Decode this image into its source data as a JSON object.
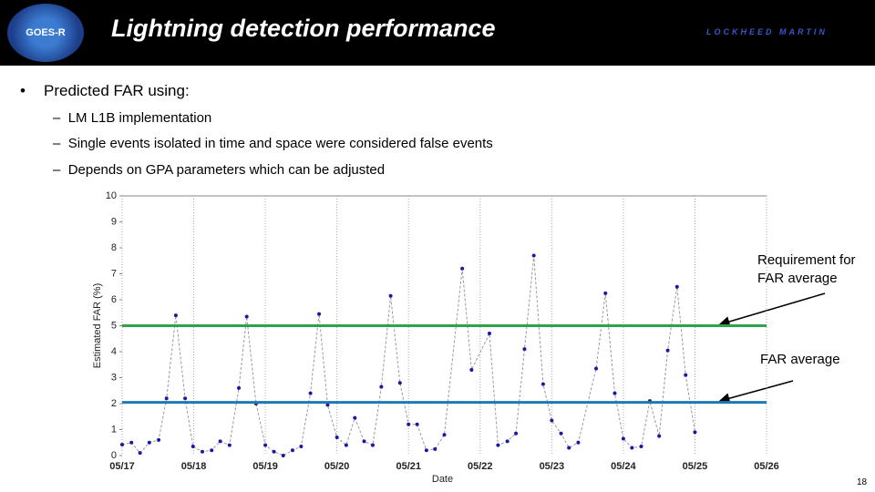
{
  "header": {
    "title": "Lightning detection performance",
    "logo_left": "GOES-R",
    "logo_right": "LOCKHEED MARTIN"
  },
  "bullet": {
    "text": "Predicted FAR using:",
    "subitems": [
      "LM L1B implementation",
      "Single events isolated in time and space were considered false events",
      "Depends on GPA parameters which can be adjusted"
    ]
  },
  "chart_data": {
    "type": "line",
    "xlabel": "Date",
    "ylabel": "Estimated FAR (%)",
    "x": [
      0,
      0.13,
      0.25,
      0.38,
      0.51,
      0.62,
      0.75,
      0.88,
      0.99,
      1.12,
      1.25,
      1.37,
      1.5,
      1.63,
      1.74,
      1.87,
      2.0,
      2.12,
      2.25,
      2.38,
      2.5,
      2.63,
      2.75,
      2.87,
      3.0,
      3.13,
      3.25,
      3.38,
      3.5,
      3.62,
      3.75,
      3.88,
      4.0,
      4.12,
      4.25,
      4.37,
      4.5,
      4.75,
      4.88,
      5.13,
      5.25,
      5.38,
      5.5,
      5.62,
      5.75,
      5.88,
      6.0,
      6.13,
      6.24,
      6.37,
      6.62,
      6.75,
      6.88,
      7.0,
      7.12,
      7.25,
      7.37,
      7.5,
      7.62,
      7.75,
      7.87,
      8.0
    ],
    "values": [
      0.42,
      0.5,
      0.1,
      0.5,
      0.6,
      2.2,
      5.4,
      2.2,
      0.35,
      0.15,
      0.2,
      0.55,
      0.4,
      2.6,
      5.35,
      2.0,
      0.4,
      0.15,
      0,
      0.2,
      0.35,
      2.4,
      5.45,
      1.95,
      0.7,
      0.4,
      1.45,
      0.55,
      0.4,
      2.65,
      6.15,
      2.8,
      1.2,
      1.2,
      0.2,
      0.25,
      0.8,
      7.2,
      3.3,
      4.7,
      0.4,
      0.55,
      0.85,
      4.1,
      7.7,
      2.75,
      1.35,
      0.85,
      0.3,
      0.5,
      3.35,
      6.25,
      2.4,
      0.65,
      0.3,
      0.35,
      2.1,
      0.75,
      4.05,
      6.5,
      3.1,
      0.9
    ],
    "line_color": "#9a9a9a",
    "marker_color": "#1a1aa0",
    "xlim": [
      0,
      9
    ],
    "ylim": [
      0,
      10
    ],
    "xticks": [
      {
        "value": 0,
        "label": "05/17"
      },
      {
        "value": 1,
        "label": "05/18"
      },
      {
        "value": 2,
        "label": "05/19"
      },
      {
        "value": 3,
        "label": "05/20"
      },
      {
        "value": 4,
        "label": "05/21"
      },
      {
        "value": 5,
        "label": "05/22"
      },
      {
        "value": 6,
        "label": "05/23"
      },
      {
        "value": 7,
        "label": "05/24"
      },
      {
        "value": 8,
        "label": "05/25"
      },
      {
        "value": 9,
        "label": "05/26"
      }
    ],
    "yticks": [
      0,
      1,
      2,
      3,
      4,
      5,
      6,
      7,
      8,
      9,
      10
    ],
    "reference_lines": [
      {
        "value": 5,
        "color": "#2ea34b"
      },
      {
        "value": 2.05,
        "color": "#1f78b4"
      }
    ],
    "annotations": [
      "Requirement for FAR average",
      "FAR average"
    ]
  },
  "page_number": "18"
}
